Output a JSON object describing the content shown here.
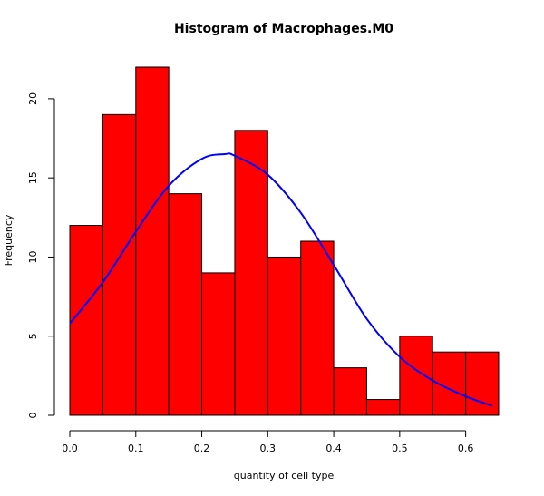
{
  "chart_data": {
    "type": "bar",
    "title": "Histogram of Macrophages.M0",
    "xlabel": "quantity of cell type",
    "ylabel": "Frequency",
    "bin_edges": [
      0.0,
      0.05,
      0.1,
      0.15,
      0.2,
      0.25,
      0.3,
      0.35,
      0.4,
      0.45,
      0.5,
      0.55,
      0.6,
      0.65
    ],
    "values": [
      12,
      19,
      22,
      14,
      9,
      18,
      10,
      11,
      3,
      1,
      5,
      4,
      4
    ],
    "xlim": [
      0.0,
      0.65
    ],
    "ylim": [
      0,
      22
    ],
    "x_ticks": [
      "0.0",
      "0.1",
      "0.2",
      "0.3",
      "0.4",
      "0.5",
      "0.6"
    ],
    "y_ticks": [
      "0",
      "5",
      "10",
      "15",
      "20"
    ],
    "bar_color": "#ff0000",
    "bar_border_color": "#000000",
    "curve": {
      "type": "normal-density",
      "color": "#0000ff",
      "peak_x": 0.235,
      "peak_y": 16.5,
      "points": [
        [
          0.0,
          5.8
        ],
        [
          0.05,
          8.4
        ],
        [
          0.1,
          11.6
        ],
        [
          0.15,
          14.5
        ],
        [
          0.2,
          16.2
        ],
        [
          0.235,
          16.5
        ],
        [
          0.25,
          16.4
        ],
        [
          0.3,
          15.2
        ],
        [
          0.35,
          12.8
        ],
        [
          0.4,
          9.5
        ],
        [
          0.45,
          6.1
        ],
        [
          0.5,
          3.7
        ],
        [
          0.55,
          2.2
        ],
        [
          0.6,
          1.2
        ],
        [
          0.64,
          0.6
        ]
      ]
    },
    "grid": false,
    "legend": "none"
  }
}
